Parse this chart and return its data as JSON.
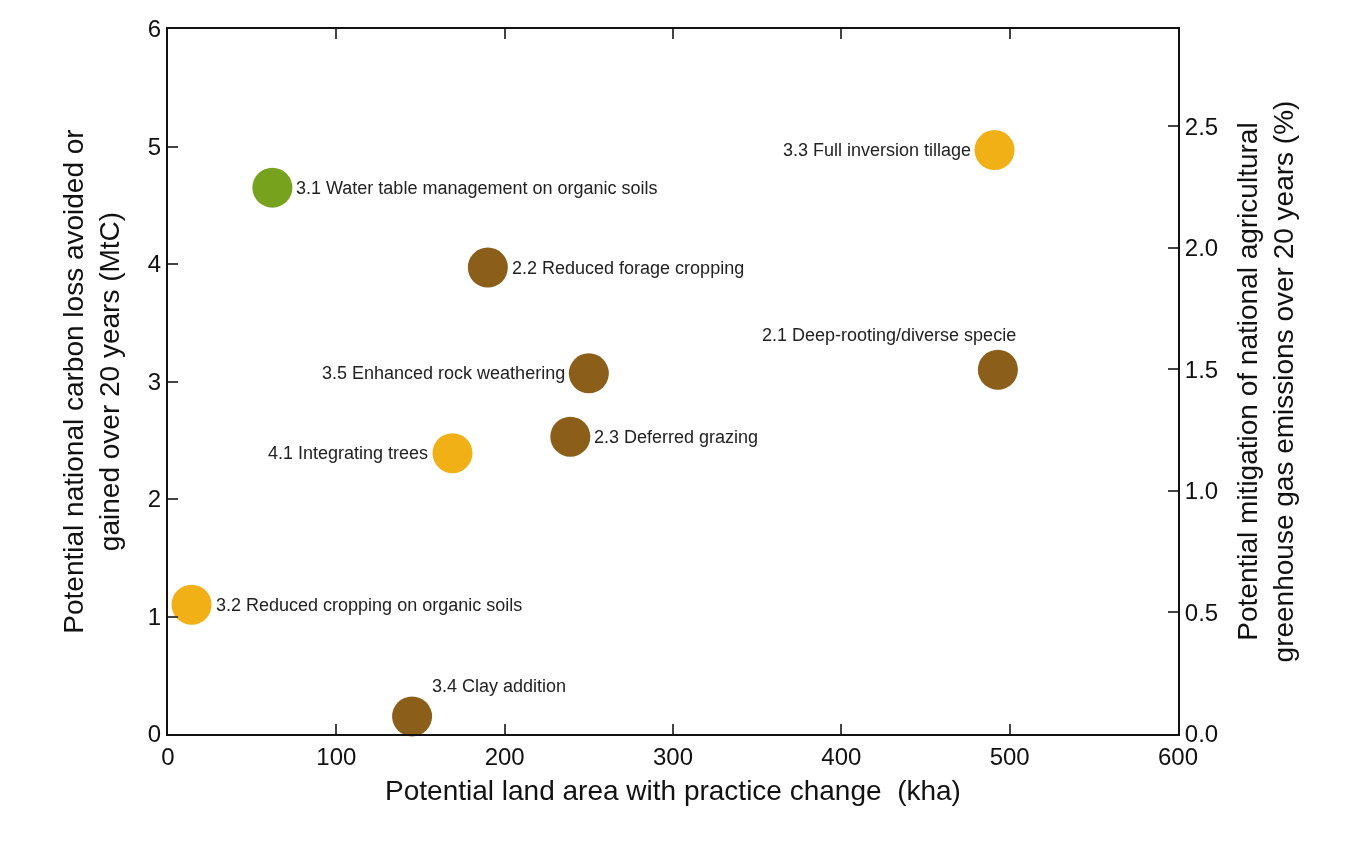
{
  "chart_data": {
    "type": "scatter",
    "xlabel": "Potential land area with practice change  (kha)",
    "ylabel": "Potential national carbon loss avoided or\ngained over 20 years (MtC)",
    "y2label": "Potential mitigation of national agricultural\ngreenhouse gas emissions over 20 years (%)",
    "x": [
      62,
      190,
      250,
      239,
      169,
      14,
      145,
      491,
      493
    ],
    "values": [
      4.65,
      3.97,
      3.07,
      2.53,
      2.39,
      1.1,
      0.15,
      4.97,
      3.1
    ],
    "colors": [
      "#76a21e",
      "#8b5e1a",
      "#8b5e1a",
      "#8b5e1a",
      "#f0b016",
      "#f0b016",
      "#8b5e1a",
      "#f0b016",
      "#8b5e1a"
    ],
    "marker": "circle",
    "xlim": [
      0,
      600
    ],
    "xticks": [
      0,
      100,
      200,
      300,
      400,
      500,
      600
    ],
    "ylim": [
      0,
      6
    ],
    "yticks": [
      0,
      1,
      2,
      3,
      4,
      5,
      6
    ],
    "y2lim": [
      0,
      2.9
    ],
    "y2ticks": [
      {
        "value": 0,
        "label": "0.0"
      },
      {
        "value": 0.5,
        "label": "0.5"
      },
      {
        "value": 1,
        "label": "1.0"
      },
      {
        "value": 1.5,
        "label": "1.5"
      },
      {
        "value": 2,
        "label": "2.0"
      },
      {
        "value": 2.5,
        "label": "2.5"
      }
    ],
    "annotations": [
      {
        "text": "3.1 Water table management on organic soils",
        "x": 62,
        "y": 4.65
      },
      {
        "text": "2.2 Reduced forage cropping",
        "x": 190,
        "y": 3.97
      },
      {
        "text": "3.5 Enhanced rock weathering",
        "x": 250,
        "y": 3.07
      },
      {
        "text": "2.3 Deferred grazing",
        "x": 239,
        "y": 2.53
      },
      {
        "text": "4.1 Integrating trees",
        "x": 169,
        "y": 2.39
      },
      {
        "text": "3.2 Reduced cropping on organic soils",
        "x": 14,
        "y": 1.1
      },
      {
        "text": "3.4 Clay addition",
        "x": 145,
        "y": 0.15
      },
      {
        "text": "3.3 Full inversion tillage",
        "x": 491,
        "y": 4.97
      },
      {
        "text": "2.1 Deep-rooting/diverse specie",
        "x": 493,
        "y": 3.1
      }
    ]
  }
}
